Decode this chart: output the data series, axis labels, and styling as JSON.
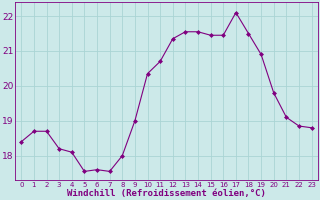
{
  "x": [
    0,
    1,
    2,
    3,
    4,
    5,
    6,
    7,
    8,
    9,
    10,
    11,
    12,
    13,
    14,
    15,
    16,
    17,
    18,
    19,
    20,
    21,
    22,
    23
  ],
  "y": [
    18.4,
    18.7,
    18.7,
    18.2,
    18.1,
    17.55,
    17.6,
    17.55,
    18.0,
    19.0,
    20.35,
    20.7,
    21.35,
    21.55,
    21.55,
    21.45,
    21.45,
    22.1,
    21.5,
    20.9,
    19.8,
    19.1,
    18.85,
    18.8
  ],
  "line_color": "#800080",
  "marker": "D",
  "marker_size": 2,
  "bg_color": "#cce9e9",
  "grid_color": "#aad4d4",
  "xlabel": "Windchill (Refroidissement éolien,°C)",
  "xlabel_color": "#800080",
  "tick_color": "#800080",
  "ylim": [
    17.3,
    22.4
  ],
  "yticks": [
    18,
    19,
    20,
    21,
    22
  ],
  "xlim": [
    -0.5,
    23.5
  ],
  "xtick_fontsize": 5.0,
  "ytick_fontsize": 6.5,
  "xlabel_fontsize": 6.5
}
